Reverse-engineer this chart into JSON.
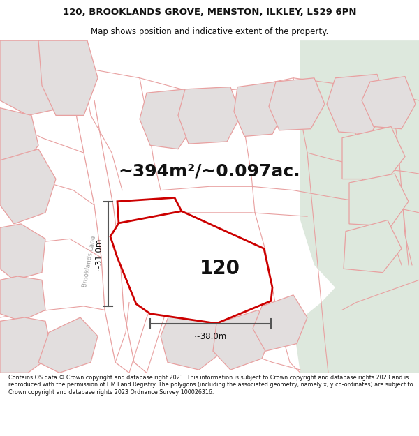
{
  "title_line1": "120, BROOKLANDS GROVE, MENSTON, ILKLEY, LS29 6PN",
  "title_line2": "Map shows position and indicative extent of the property.",
  "area_text": "~394m²/~0.097ac.",
  "label_120": "120",
  "dim_horizontal": "~38.0m",
  "dim_vertical": "~31.0m",
  "road_label": "Brooklands Lane",
  "footer_text": "Contains OS data © Crown copyright and database right 2021. This information is subject to Crown copyright and database rights 2023 and is reproduced with the permission of HM Land Registry. The polygons (including the associated geometry, namely x, y co-ordinates) are subject to Crown copyright and database rights 2023 Ordnance Survey 100026316.",
  "map_bg": "#ede9e9",
  "plot_outline_color": "#cc0000",
  "other_outline_color": "#e8a0a0",
  "other_fill": "#e2dede",
  "dim_line_color": "#555555",
  "road_label_color": "#999999",
  "text_color": "#111111",
  "title_bg": "#ffffff",
  "green_area_color": "#dde8dd",
  "title_fontsize": 9.5,
  "subtitle_fontsize": 8.5,
  "area_fontsize": 18,
  "label_fontsize": 20,
  "footer_fontsize": 5.8
}
